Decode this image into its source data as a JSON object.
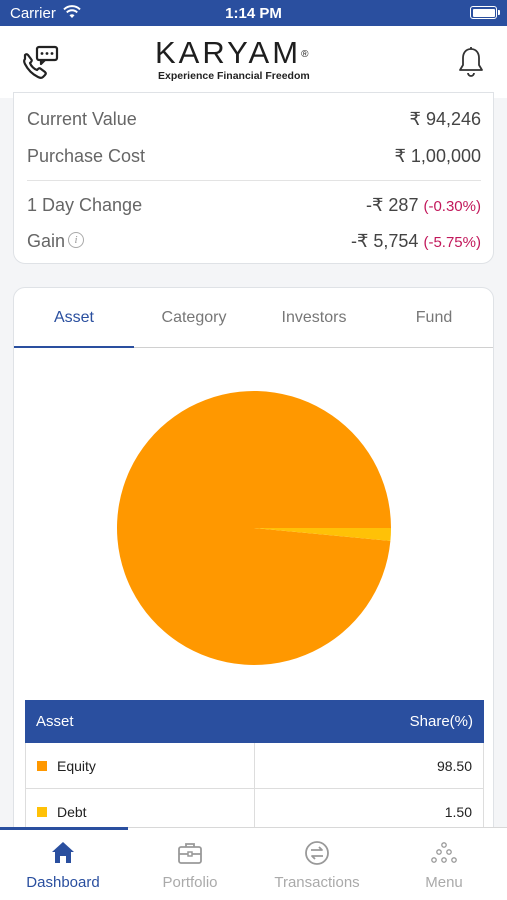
{
  "status_bar": {
    "carrier": "Carrier",
    "time": "1:14 PM"
  },
  "header": {
    "logo_text": "KARYAM",
    "logo_mark": "®",
    "tagline": "Experience Financial Freedom",
    "support_icon": "phone-chat-icon",
    "bell_icon": "bell-icon"
  },
  "summary": {
    "current_value_label": "Current Value",
    "current_value": "₹ 94,246",
    "purchase_cost_label": "Purchase Cost",
    "purchase_cost": "₹ 1,00,000",
    "day_change_label": "1 Day Change",
    "day_change_value": "-₹ 287",
    "day_change_pct": "(-0.30%)",
    "gain_label": "Gain",
    "gain_info_glyph": "i",
    "gain_value": "-₹ 5,754",
    "gain_pct": "(-5.75%)",
    "negative_color": "#c2185b"
  },
  "tabs": [
    {
      "label": "Asset",
      "active": true
    },
    {
      "label": "Category",
      "active": false
    },
    {
      "label": "Investors",
      "active": false
    },
    {
      "label": "Fund",
      "active": false
    }
  ],
  "chart_data": {
    "type": "pie",
    "categories": [
      "Equity",
      "Debt"
    ],
    "values": [
      98.5,
      1.5
    ],
    "colors": [
      "#ff9800",
      "#ffc107"
    ]
  },
  "table": {
    "header_name": "Asset",
    "header_share": "Share(%)",
    "rows": [
      {
        "name": "Equity",
        "share": "98.50",
        "color": "#ff9800"
      },
      {
        "name": "Debt",
        "share": "1.50",
        "color": "#ffc107"
      }
    ]
  },
  "bottom_nav": [
    {
      "label": "Dashboard",
      "icon": "home-icon",
      "active": true
    },
    {
      "label": "Portfolio",
      "icon": "briefcase-icon",
      "active": false
    },
    {
      "label": "Transactions",
      "icon": "transfer-icon",
      "active": false
    },
    {
      "label": "Menu",
      "icon": "menu-dots-icon",
      "active": false
    }
  ],
  "brand_color": "#2a4f9f"
}
